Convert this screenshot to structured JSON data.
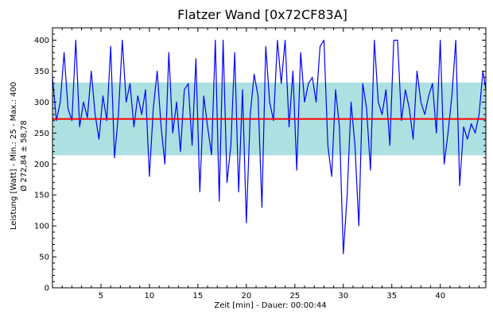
{
  "chart_data": {
    "type": "line",
    "title": "Flatzer Wand [0x72CF83A]",
    "xlabel": "Zeit [min] - Dauer: 00:00:44",
    "ylabel": "Leistung [Watt] - Min.: 25 - Max.: 400",
    "ylabel2": "Ø 272,84 ± 58,78",
    "xlim": [
      0,
      44.7
    ],
    "ylim": [
      0,
      420
    ],
    "x_ticks": [
      5,
      10,
      15,
      20,
      25,
      30,
      35,
      40
    ],
    "y_ticks": [
      0,
      50,
      100,
      150,
      200,
      250,
      300,
      350,
      400
    ],
    "mean": 272.84,
    "std": 58.78,
    "band": [
      214.06,
      331.62
    ],
    "grid": false,
    "colors": {
      "series": "#0000ff",
      "mean_line": "#ff0000",
      "band": "#9fdcdc",
      "background": "#ffffff"
    },
    "series": [
      {
        "x": [
          0,
          0.4,
          0.8,
          1.2,
          1.6,
          2.0,
          2.4,
          2.8,
          3.2,
          3.6,
          4.0,
          4.4,
          4.8,
          5.2,
          5.6,
          6.0,
          6.4,
          6.8,
          7.2,
          7.6,
          8.0,
          8.4,
          8.8,
          9.2,
          9.6,
          10.0,
          10.4,
          10.8,
          11.2,
          11.6,
          12.0,
          12.4,
          12.8,
          13.2,
          13.6,
          14.0,
          14.4,
          14.8,
          15.2,
          15.6,
          16.0,
          16.4,
          16.8,
          17.2,
          17.6,
          18.0,
          18.4,
          18.8,
          19.2,
          19.6,
          20.0,
          20.4,
          20.8,
          21.2,
          21.6,
          22.0,
          22.4,
          22.8,
          23.2,
          23.6,
          24.0,
          24.4,
          24.8,
          25.2,
          25.6,
          26.0,
          26.4,
          26.8,
          27.2,
          27.6,
          28.0,
          28.4,
          28.8,
          29.2,
          29.6,
          30.0,
          30.4,
          30.8,
          31.2,
          31.6,
          32.0,
          32.4,
          32.8,
          33.2,
          33.6,
          34.0,
          34.4,
          34.8,
          35.2,
          35.6,
          36.0,
          36.4,
          36.8,
          37.2,
          37.6,
          38.0,
          38.4,
          38.8,
          39.2,
          39.6,
          40.0,
          40.4,
          40.8,
          41.2,
          41.6,
          42.0,
          42.4,
          42.8,
          43.2,
          43.6,
          44.0,
          44.4,
          44.7
        ],
        "values": [
          340,
          270,
          300,
          380,
          290,
          270,
          400,
          260,
          300,
          275,
          350,
          280,
          240,
          310,
          270,
          390,
          210,
          280,
          400,
          300,
          330,
          260,
          310,
          280,
          320,
          180,
          290,
          350,
          260,
          200,
          380,
          250,
          300,
          220,
          320,
          330,
          230,
          370,
          155,
          310,
          260,
          215,
          400,
          140,
          400,
          170,
          230,
          380,
          155,
          320,
          105,
          280,
          345,
          310,
          130,
          390,
          300,
          270,
          400,
          330,
          400,
          260,
          350,
          190,
          380,
          300,
          330,
          340,
          300,
          390,
          400,
          230,
          180,
          320,
          260,
          55,
          150,
          300,
          230,
          100,
          330,
          290,
          190,
          400,
          300,
          280,
          320,
          230,
          400,
          400,
          270,
          320,
          290,
          240,
          350,
          300,
          280,
          310,
          330,
          250,
          400,
          200,
          250,
          310,
          400,
          165,
          260,
          240,
          265,
          250,
          280,
          350,
          320
        ]
      }
    ]
  }
}
